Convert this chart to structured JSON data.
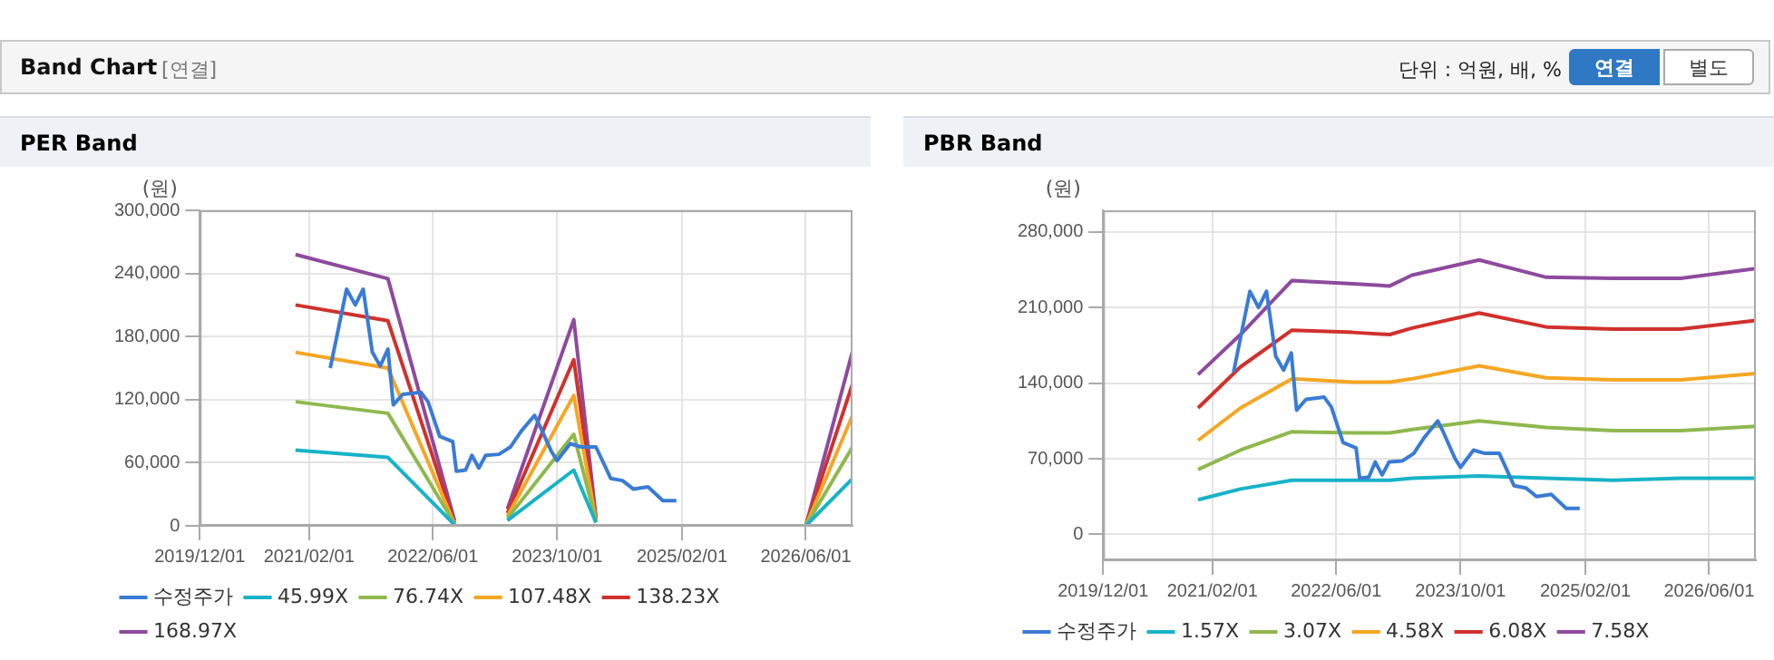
{
  "chart_data": [
    {
      "type": "other",
      "title": "Band Chart",
      "annotations": [
        "[연결]",
        "단위 : 억원, 배, %",
        "연결",
        "별도"
      ]
    },
    {
      "type": "line",
      "title": "PER Band",
      "ylabel": "(원)",
      "grid": true,
      "legend": "bottom",
      "marker": "none",
      "xlim": [
        "2019-12-01",
        "2026-12-01"
      ],
      "xticks": [
        {
          "value": "2019-12-01",
          "label": "2019/12/01"
        },
        {
          "value": "2021-02-01",
          "label": "2021/02/01"
        },
        {
          "value": "2022-06-01",
          "label": "2022/06/01"
        },
        {
          "value": "2023-10-01",
          "label": "2023/10/01"
        },
        {
          "value": "2025-02-01",
          "label": "2025/02/01"
        },
        {
          "value": "2026-06-01",
          "label": "2026/06/01"
        }
      ],
      "ylim": [
        0,
        300000
      ],
      "yticks": [
        {
          "value": 0,
          "label": "0"
        },
        {
          "value": 60000,
          "label": "60,000"
        },
        {
          "value": 120000,
          "label": "120,000"
        },
        {
          "value": 180000,
          "label": "180,000"
        },
        {
          "value": 240000,
          "label": "240,000"
        },
        {
          "value": 300000,
          "label": "300,000"
        }
      ],
      "series": [
        {
          "name": "수정주가",
          "color": "#3a7bd5",
          "x": [
            "2021-04-25",
            "2021-06-28",
            "2021-08-01",
            "2021-09-01",
            "2021-10-07",
            "2021-11-07",
            "2021-12-07",
            "2021-12-28",
            "2022-02-03",
            "2022-04-15",
            "2022-05-13",
            "2022-06-28",
            "2022-08-18",
            "2022-09-01",
            "2022-10-07",
            "2022-11-01",
            "2022-11-28",
            "2022-12-25",
            "2023-02-15",
            "2023-04-01",
            "2023-05-13",
            "2023-07-04",
            "2023-07-25",
            "2023-09-10",
            "2023-10-01",
            "2023-11-21",
            "2024-01-04",
            "2024-03-01",
            "2024-04-28",
            "2024-06-13",
            "2024-07-25",
            "2024-09-21",
            "2024-11-18",
            "2025-01-10"
          ],
          "values": [
            150000,
            225000,
            210000,
            225000,
            165000,
            152000,
            168000,
            115000,
            125000,
            127000,
            118000,
            85000,
            80000,
            52000,
            53000,
            67000,
            55000,
            67000,
            68000,
            75000,
            90000,
            105000,
            95000,
            70000,
            62000,
            78000,
            75000,
            75000,
            45000,
            43000,
            35000,
            37000,
            24000,
            24000
          ]
        },
        {
          "name": "45.99X",
          "color": "#17b3c8",
          "x": [
            "2020-12-10",
            "2021-12-07",
            "2022-08-25",
            "2023-01-01",
            "2023-03-20",
            "2023-12-05",
            "2024-03-01",
            "2025-06-01",
            "2026-06-01",
            "2026-12-01"
          ],
          "values": [
            72000,
            65000,
            1000,
            null,
            5000,
            53000,
            3000,
            null,
            0,
            45000
          ]
        },
        {
          "name": "76.74X",
          "color": "#8fb84e",
          "x": [
            "2020-12-10",
            "2021-12-07",
            "2022-08-25",
            "2023-01-01",
            "2023-03-20",
            "2023-12-05",
            "2024-03-01",
            "2025-06-01",
            "2026-06-01",
            "2026-12-01"
          ],
          "values": [
            118000,
            107000,
            2000,
            null,
            7000,
            87000,
            4000,
            null,
            0,
            75000
          ]
        },
        {
          "name": "107.48X",
          "color": "#f5a623",
          "x": [
            "2020-12-10",
            "2021-12-07",
            "2022-08-25",
            "2023-01-01",
            "2023-03-20",
            "2023-12-05",
            "2024-03-01",
            "2025-06-01",
            "2026-06-01",
            "2026-12-01"
          ],
          "values": [
            165000,
            150000,
            2000,
            null,
            9000,
            124000,
            5000,
            null,
            0,
            105000
          ]
        },
        {
          "name": "138.23X",
          "color": "#d0312d",
          "x": [
            "2020-12-10",
            "2021-12-07",
            "2022-08-25",
            "2023-01-01",
            "2023-03-20",
            "2023-12-05",
            "2024-03-01",
            "2025-06-01",
            "2026-06-01",
            "2026-12-01"
          ],
          "values": [
            210000,
            195000,
            3000,
            null,
            12000,
            158000,
            6000,
            null,
            0,
            135000
          ]
        },
        {
          "name": "168.97X",
          "color": "#8e4a9e",
          "x": [
            "2020-12-10",
            "2021-12-07",
            "2022-08-25",
            "2023-01-01",
            "2023-03-20",
            "2023-12-05",
            "2024-03-01",
            "2025-06-01",
            "2026-06-01",
            "2026-12-01"
          ],
          "values": [
            258000,
            235000,
            5000,
            null,
            16000,
            196000,
            8000,
            null,
            0,
            166000
          ]
        }
      ]
    },
    {
      "type": "line",
      "title": "PBR Band",
      "ylabel": "(원)",
      "grid": true,
      "legend": "bottom",
      "marker": "none",
      "xlim": [
        "2019-12-01",
        "2026-12-01"
      ],
      "xticks": [
        {
          "value": "2019-12-01",
          "label": "2019/12/01"
        },
        {
          "value": "2021-02-01",
          "label": "2021/02/01"
        },
        {
          "value": "2022-06-01",
          "label": "2022/06/01"
        },
        {
          "value": "2023-10-01",
          "label": "2023/10/01"
        },
        {
          "value": "2025-02-01",
          "label": "2025/02/01"
        },
        {
          "value": "2026-06-01",
          "label": "2026/06/01"
        }
      ],
      "ylim": [
        -24000,
        300000
      ],
      "yticks": [
        {
          "value": 0,
          "label": "0"
        },
        {
          "value": 70000,
          "label": "70,000"
        },
        {
          "value": 140000,
          "label": "140,000"
        },
        {
          "value": 210000,
          "label": "210,000"
        },
        {
          "value": 280000,
          "label": "280,000"
        }
      ],
      "series": [
        {
          "name": "수정주가",
          "color": "#3a7bd5",
          "x": [
            "2021-04-25",
            "2021-06-28",
            "2021-08-01",
            "2021-09-01",
            "2021-10-07",
            "2021-11-07",
            "2021-12-07",
            "2021-12-28",
            "2022-02-03",
            "2022-04-15",
            "2022-05-13",
            "2022-06-28",
            "2022-08-18",
            "2022-09-01",
            "2022-10-07",
            "2022-11-01",
            "2022-11-28",
            "2022-12-25",
            "2023-02-15",
            "2023-04-01",
            "2023-05-13",
            "2023-07-04",
            "2023-07-25",
            "2023-09-10",
            "2023-10-01",
            "2023-11-21",
            "2024-01-04",
            "2024-03-01",
            "2024-04-28",
            "2024-06-13",
            "2024-07-25",
            "2024-09-21",
            "2024-11-18",
            "2025-01-10"
          ],
          "values": [
            150000,
            225000,
            210000,
            225000,
            165000,
            152000,
            168000,
            115000,
            125000,
            127000,
            118000,
            85000,
            80000,
            52000,
            53000,
            67000,
            55000,
            67000,
            68000,
            75000,
            90000,
            105000,
            95000,
            70000,
            62000,
            78000,
            75000,
            75000,
            45000,
            43000,
            35000,
            37000,
            24000,
            24000
          ]
        },
        {
          "name": "1.57X",
          "color": "#17b3c8",
          "x": [
            "2020-12-07",
            "2021-05-22",
            "2021-12-10",
            "2022-08-04",
            "2022-12-28",
            "2023-03-25",
            "2023-12-13",
            "2024-09-01",
            "2025-05-21",
            "2026-02-10",
            "2026-12-01"
          ],
          "values": [
            32000,
            42000,
            50000,
            50000,
            50000,
            52000,
            54000,
            52000,
            50000,
            52000,
            52000
          ]
        },
        {
          "name": "3.07X",
          "color": "#8fb84e",
          "x": [
            "2020-12-07",
            "2021-05-22",
            "2021-12-10",
            "2022-08-04",
            "2022-12-28",
            "2023-03-25",
            "2023-12-13",
            "2024-09-01",
            "2025-05-21",
            "2026-02-10",
            "2026-12-01"
          ],
          "values": [
            60000,
            78000,
            95000,
            94000,
            94000,
            97000,
            105000,
            99000,
            96000,
            96000,
            100000
          ]
        },
        {
          "name": "4.58X",
          "color": "#f5a623",
          "x": [
            "2020-12-07",
            "2021-05-22",
            "2021-12-10",
            "2022-08-04",
            "2022-12-28",
            "2023-03-25",
            "2023-12-13",
            "2024-09-01",
            "2025-05-21",
            "2026-02-10",
            "2026-12-01"
          ],
          "values": [
            87000,
            117000,
            144000,
            141000,
            141000,
            144000,
            156000,
            145000,
            143000,
            143000,
            149000
          ]
        },
        {
          "name": "6.08X",
          "color": "#d0312d",
          "x": [
            "2020-12-07",
            "2021-05-22",
            "2021-12-10",
            "2022-08-04",
            "2022-12-28",
            "2023-03-25",
            "2023-12-13",
            "2024-09-01",
            "2025-05-21",
            "2026-02-10",
            "2026-12-01"
          ],
          "values": [
            117000,
            155000,
            189000,
            187000,
            185000,
            191000,
            205000,
            192000,
            190000,
            190000,
            198000
          ]
        },
        {
          "name": "7.58X",
          "color": "#8e4a9e",
          "x": [
            "2020-12-07",
            "2021-05-22",
            "2021-12-10",
            "2022-08-04",
            "2022-12-28",
            "2023-03-25",
            "2023-12-13",
            "2024-09-01",
            "2025-05-21",
            "2026-02-10",
            "2026-12-01"
          ],
          "values": [
            148000,
            185000,
            235000,
            232000,
            230000,
            240000,
            254000,
            238000,
            237000,
            237000,
            246000
          ]
        }
      ]
    }
  ]
}
